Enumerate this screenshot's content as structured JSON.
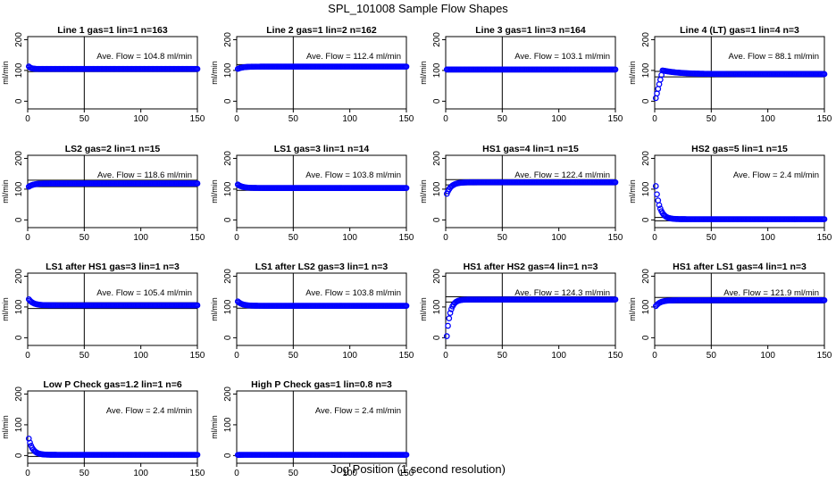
{
  "title": "SPL_101008  Sample Flow Shapes",
  "xlabel": "Jog Position (1 second resolution)",
  "ylabel": "ml/min",
  "flow_label_prefix": "Ave. Flow =",
  "flow_unit": "ml/min",
  "colors": {
    "points": "#0000ff",
    "axes": "#000000"
  },
  "chart_data": [
    {
      "type": "scatter",
      "title": "Line 1 gas=1 lin=1 n=163",
      "ave_flow": 104.8,
      "shape": "flat",
      "start": 113,
      "xlim": [
        0,
        150
      ],
      "ylim": [
        -25,
        210
      ],
      "xticks": [
        0,
        50,
        100,
        150
      ],
      "yticks": [
        0,
        100,
        200
      ],
      "vline_x": 50,
      "hlines": [
        96,
        110
      ]
    },
    {
      "type": "scatter",
      "title": "Line 2 gas=1 lin=2 n=162",
      "ave_flow": 112.4,
      "shape": "rise",
      "start": 105,
      "xlim": [
        0,
        150
      ],
      "ylim": [
        -25,
        210
      ],
      "xticks": [
        0,
        50,
        100,
        150
      ],
      "yticks": [
        0,
        100,
        200
      ],
      "vline_x": 50,
      "hlines": [
        106,
        119
      ]
    },
    {
      "type": "scatter",
      "title": "Line 3 gas=1 lin=3 n=164",
      "ave_flow": 103.1,
      "shape": "flat",
      "start": 103,
      "xlim": [
        0,
        150
      ],
      "ylim": [
        -25,
        210
      ],
      "xticks": [
        0,
        50,
        100,
        150
      ],
      "yticks": [
        0,
        100,
        200
      ],
      "vline_x": 50,
      "hlines": [
        95,
        110
      ]
    },
    {
      "type": "scatter",
      "title": "Line 4 (LT) gas=1 lin=4 n=3",
      "ave_flow": 88.1,
      "shape": "overshoot",
      "start": 10,
      "xlim": [
        0,
        150
      ],
      "ylim": [
        -25,
        210
      ],
      "xticks": [
        0,
        50,
        100,
        150
      ],
      "yticks": [
        0,
        100,
        200
      ],
      "vline_x": 50,
      "hlines": [
        79,
        97
      ]
    },
    {
      "type": "scatter",
      "title": "LS2 gas=2 lin=1 n=15",
      "ave_flow": 118.6,
      "shape": "rise",
      "start": 108,
      "xlim": [
        0,
        150
      ],
      "ylim": [
        -25,
        210
      ],
      "xticks": [
        0,
        50,
        100,
        150
      ],
      "yticks": [
        0,
        100,
        200
      ],
      "vline_x": 50,
      "hlines": [
        108,
        129
      ]
    },
    {
      "type": "scatter",
      "title": "LS1 gas=3 lin=1 n=14",
      "ave_flow": 103.8,
      "shape": "fall",
      "start": 115,
      "xlim": [
        0,
        150
      ],
      "ylim": [
        -25,
        210
      ],
      "xticks": [
        0,
        50,
        100,
        150
      ],
      "yticks": [
        0,
        100,
        200
      ],
      "vline_x": 50,
      "hlines": [
        96,
        111
      ]
    },
    {
      "type": "scatter",
      "title": "HS1 gas=4 lin=1 n=15",
      "ave_flow": 122.4,
      "shape": "rise",
      "start": 85,
      "xlim": [
        0,
        150
      ],
      "ylim": [
        -25,
        210
      ],
      "xticks": [
        0,
        50,
        100,
        150
      ],
      "yticks": [
        0,
        100,
        200
      ],
      "vline_x": 50,
      "hlines": [
        114,
        131
      ]
    },
    {
      "type": "scatter",
      "title": "HS2 gas=5 lin=1 n=15",
      "ave_flow": 2.4,
      "shape": "decay",
      "start": 110,
      "xlim": [
        0,
        150
      ],
      "ylim": [
        -25,
        210
      ],
      "xticks": [
        0,
        50,
        100,
        150
      ],
      "yticks": [
        0,
        100,
        200
      ],
      "vline_x": 50,
      "hlines": [
        -3,
        8
      ]
    },
    {
      "type": "scatter",
      "title": "LS1 after HS1 gas=3 lin=1 n=3",
      "ave_flow": 105.4,
      "shape": "fall",
      "start": 125,
      "xlim": [
        0,
        150
      ],
      "ylim": [
        -25,
        210
      ],
      "xticks": [
        0,
        50,
        100,
        150
      ],
      "yticks": [
        0,
        100,
        200
      ],
      "vline_x": 50,
      "hlines": [
        95,
        114
      ]
    },
    {
      "type": "scatter",
      "title": "LS1 after LS2 gas=3 lin=1 n=3",
      "ave_flow": 103.8,
      "shape": "fall",
      "start": 118,
      "xlim": [
        0,
        150
      ],
      "ylim": [
        -25,
        210
      ],
      "xticks": [
        0,
        50,
        100,
        150
      ],
      "yticks": [
        0,
        100,
        200
      ],
      "vline_x": 50,
      "hlines": [
        96,
        111
      ]
    },
    {
      "type": "scatter",
      "title": "HS1 after HS2 gas=4 lin=1 n=3",
      "ave_flow": 124.3,
      "shape": "risefast",
      "start": 5,
      "xlim": [
        0,
        150
      ],
      "ylim": [
        -25,
        210
      ],
      "xticks": [
        0,
        50,
        100,
        150
      ],
      "yticks": [
        0,
        100,
        200
      ],
      "vline_x": 50,
      "hlines": [
        116,
        133
      ]
    },
    {
      "type": "scatter",
      "title": "HS1 after LS1 gas=4 lin=1 n=3",
      "ave_flow": 121.9,
      "shape": "rise",
      "start": 103,
      "xlim": [
        0,
        150
      ],
      "ylim": [
        -25,
        210
      ],
      "xticks": [
        0,
        50,
        100,
        150
      ],
      "yticks": [
        0,
        100,
        200
      ],
      "vline_x": 50,
      "hlines": [
        113,
        131
      ]
    },
    {
      "type": "scatter",
      "title": "Low P Check gas=1.2 lin=1 n=6",
      "ave_flow": 2.4,
      "shape": "decay",
      "start": 55,
      "xlim": [
        0,
        150
      ],
      "ylim": [
        -25,
        210
      ],
      "xticks": [
        0,
        50,
        100,
        150
      ],
      "yticks": [
        0,
        100,
        200
      ],
      "vline_x": 50,
      "hlines": [
        -3,
        8
      ]
    },
    {
      "type": "scatter",
      "title": "High P Check gas=1 lin=0.8 n=3",
      "ave_flow": 2.4,
      "shape": "flat",
      "start": 2,
      "xlim": [
        0,
        150
      ],
      "ylim": [
        -25,
        210
      ],
      "xticks": [
        0,
        50,
        100,
        150
      ],
      "yticks": [
        0,
        100,
        200
      ],
      "vline_x": 50,
      "hlines": [
        -3,
        8
      ]
    }
  ]
}
